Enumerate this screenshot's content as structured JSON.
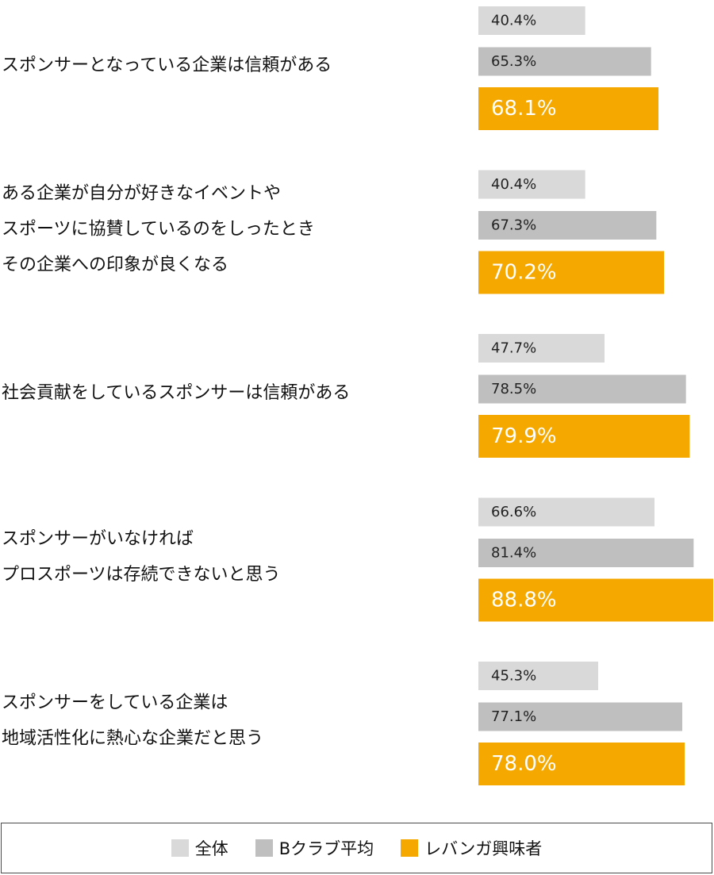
{
  "chart_data": {
    "type": "bar",
    "orientation": "horizontal",
    "categories": [
      "スポンサーとなっている企業は信頼がある",
      "ある企業が自分が好きなイベントや\nスポーツに協賛しているのをしったとき\nその企業への印象が良くなる",
      "社会貢献をしているスポンサーは信頼がある",
      "スポンサーがいなければ\nプロスポーツは存続できないと思う",
      "スポンサーをしている企業は\n地域活性化に熱心な企業だと思う"
    ],
    "series": [
      {
        "name": "全体",
        "color": "#d9d9d9",
        "values": [
          40.4,
          40.4,
          47.7,
          66.6,
          45.3
        ]
      },
      {
        "name": "Bクラブ平均",
        "color": "#bfbfbf",
        "values": [
          65.3,
          67.3,
          78.5,
          81.4,
          77.1
        ]
      },
      {
        "name": "レバンガ興味者",
        "color": "#f5a800",
        "values": [
          68.1,
          70.2,
          79.9,
          88.8,
          78.0
        ]
      }
    ],
    "value_suffix": "%",
    "xlim": [
      0,
      88.8
    ],
    "grid": false,
    "legend_position": "bottom"
  }
}
